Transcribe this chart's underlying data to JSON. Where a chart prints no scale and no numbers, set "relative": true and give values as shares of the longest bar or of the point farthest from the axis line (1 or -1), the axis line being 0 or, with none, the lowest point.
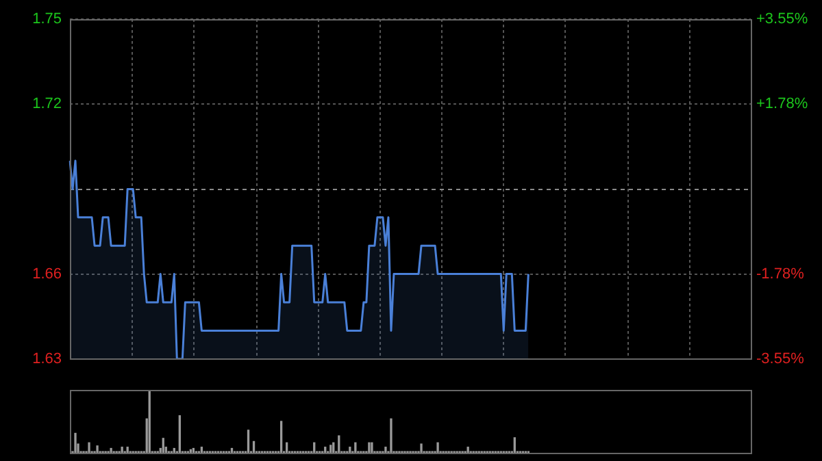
{
  "chart_data": [
    {
      "type": "area",
      "categories": [
        null,
        null,
        null,
        null,
        null,
        null,
        null,
        null,
        null,
        null,
        null,
        null,
        null,
        null,
        null,
        null,
        null,
        null,
        null,
        null,
        null,
        null,
        null,
        null,
        null,
        null,
        null,
        null,
        null,
        null,
        null,
        null,
        null,
        null,
        null,
        null,
        null,
        null,
        null,
        null,
        null,
        null,
        null,
        null,
        null,
        null,
        null,
        null,
        null,
        null,
        null,
        null,
        null,
        null,
        null,
        null,
        null,
        null,
        null,
        null,
        null,
        null,
        null,
        null,
        null,
        null,
        null,
        null,
        null,
        null,
        null,
        null,
        null,
        null,
        null,
        null,
        null,
        null,
        null,
        null,
        null,
        null,
        null,
        null,
        null,
        null,
        null,
        null,
        null,
        null,
        null,
        null,
        null,
        null,
        null,
        null,
        null,
        null,
        null,
        null,
        null,
        null,
        null,
        null,
        null,
        null,
        null,
        null,
        null,
        null,
        null,
        null,
        null,
        null,
        null,
        null,
        null,
        null,
        null,
        null,
        null,
        null,
        null,
        null,
        null,
        null,
        null,
        null,
        null,
        null,
        null,
        null,
        null,
        null,
        null,
        null,
        null,
        null,
        null,
        null,
        null,
        null,
        null,
        null,
        null,
        null,
        null,
        null,
        null,
        null,
        null,
        null,
        null,
        null,
        null,
        null,
        null,
        null,
        null,
        null,
        null,
        null,
        null,
        null,
        null,
        null,
        null,
        null,
        null,
        null,
        null,
        null,
        null,
        null,
        null,
        null,
        null,
        null,
        null,
        null,
        null,
        null,
        null,
        null,
        null,
        null,
        null,
        null,
        null,
        null,
        null,
        null,
        null,
        null,
        null,
        null,
        null,
        null,
        null,
        null,
        null,
        null,
        null,
        null,
        null,
        null,
        null,
        null,
        null,
        null,
        null,
        null,
        null,
        null,
        null,
        null,
        null,
        null,
        null,
        null,
        null,
        null,
        null,
        null,
        null,
        null,
        null,
        null,
        null,
        null,
        null,
        null,
        null,
        null,
        null,
        null,
        null,
        null,
        null,
        null,
        null,
        null,
        null,
        null,
        null,
        null,
        null,
        null,
        null
      ],
      "color": "#4a80d8",
      "values": [
        1.7,
        1.69,
        1.7,
        1.68,
        1.68,
        1.68,
        1.68,
        1.68,
        1.68,
        1.67,
        1.67,
        1.67,
        1.68,
        1.68,
        1.68,
        1.67,
        1.67,
        1.67,
        1.67,
        1.67,
        1.67,
        1.69,
        1.69,
        1.69,
        1.68,
        1.68,
        1.68,
        1.66,
        1.65,
        1.65,
        1.65,
        1.65,
        1.65,
        1.66,
        1.65,
        1.65,
        1.65,
        1.65,
        1.66,
        1.63,
        1.63,
        1.63,
        1.65,
        1.65,
        1.65,
        1.65,
        1.65,
        1.65,
        1.64,
        1.64,
        1.64,
        1.64,
        1.64,
        1.64,
        1.64,
        1.64,
        1.64,
        1.64,
        1.64,
        1.64,
        1.64,
        1.64,
        1.64,
        1.64,
        1.64,
        1.64,
        1.64,
        1.64,
        1.64,
        1.64,
        1.64,
        1.64,
        1.64,
        1.64,
        1.64,
        1.64,
        1.64,
        1.66,
        1.65,
        1.65,
        1.65,
        1.67,
        1.67,
        1.67,
        1.67,
        1.67,
        1.67,
        1.67,
        1.67,
        1.65,
        1.65,
        1.65,
        1.65,
        1.66,
        1.65,
        1.65,
        1.65,
        1.65,
        1.65,
        1.65,
        1.65,
        1.64,
        1.64,
        1.64,
        1.64,
        1.64,
        1.64,
        1.65,
        1.65,
        1.67,
        1.67,
        1.67,
        1.68,
        1.68,
        1.68,
        1.67,
        1.68,
        1.64,
        1.66,
        1.66,
        1.66,
        1.66,
        1.66,
        1.66,
        1.66,
        1.66,
        1.66,
        1.66,
        1.67,
        1.67,
        1.67,
        1.67,
        1.67,
        1.67,
        1.66,
        1.66,
        1.66,
        1.66,
        1.66,
        1.66,
        1.66,
        1.66,
        1.66,
        1.66,
        1.66,
        1.66,
        1.66,
        1.66,
        1.66,
        1.66,
        1.66,
        1.66,
        1.66,
        1.66,
        1.66,
        1.66,
        1.66,
        1.66,
        1.64,
        1.66,
        1.66,
        1.66,
        1.64,
        1.64,
        1.64,
        1.64,
        1.64,
        1.66,
        null,
        null,
        null,
        null,
        null,
        null,
        null,
        null,
        null,
        null,
        null,
        null,
        null,
        null,
        null,
        null,
        null,
        null,
        null,
        null,
        null,
        null,
        null,
        null,
        null,
        null,
        null,
        null,
        null,
        null,
        null,
        null,
        null,
        null,
        null,
        null,
        null,
        null,
        null,
        null,
        null,
        null,
        null,
        null,
        null,
        null,
        null,
        null,
        null,
        null,
        null,
        null,
        null,
        null,
        null,
        null,
        null,
        null,
        null,
        null,
        null,
        null,
        null,
        null,
        null,
        null,
        null,
        null,
        null,
        null,
        null,
        null,
        null,
        null,
        null,
        null,
        null,
        null,
        null,
        null,
        null
      ],
      "ylim": [
        1.63,
        1.75
      ],
      "yticks": [
        1.63,
        1.66,
        1.72,
        1.75
      ],
      "y2lim": [
        -3.55,
        3.55
      ],
      "y2ticks": [
        {
          "value": -3.55,
          "label": "-3.55%"
        },
        {
          "value": -1.78,
          "label": "-1.78%"
        },
        {
          "value": 1.78,
          "label": "+1.78%"
        },
        {
          "value": 3.55,
          "label": "+3.55%"
        }
      ],
      "ref_lines": [
        {
          "axis": "y",
          "value": 1.69,
          "label": null,
          "line_style": "dashed"
        }
      ],
      "grid": true,
      "tick_labels": "y"
    },
    {
      "type": "bar",
      "relative": true,
      "color": "#9a9a9a",
      "categories": [
        null,
        null,
        null,
        null,
        null,
        null,
        null,
        null,
        null,
        null,
        null,
        null,
        null,
        null,
        null,
        null,
        null,
        null,
        null,
        null,
        null,
        null,
        null,
        null,
        null,
        null,
        null,
        null,
        null,
        null,
        null,
        null,
        null,
        null,
        null,
        null,
        null,
        null,
        null,
        null,
        null,
        null,
        null,
        null,
        null,
        null,
        null,
        null,
        null,
        null,
        null,
        null,
        null,
        null,
        null,
        null,
        null,
        null,
        null,
        null,
        null,
        null,
        null,
        null,
        null,
        null,
        null,
        null,
        null,
        null,
        null,
        null,
        null,
        null,
        null,
        null,
        null,
        null,
        null,
        null,
        null,
        null,
        null,
        null,
        null,
        null,
        null,
        null,
        null,
        null,
        null,
        null,
        null,
        null,
        null,
        null,
        null,
        null,
        null,
        null,
        null,
        null,
        null,
        null,
        null,
        null,
        null,
        null,
        null,
        null,
        null,
        null,
        null,
        null,
        null,
        null,
        null,
        null,
        null,
        null,
        null,
        null,
        null,
        null,
        null,
        null,
        null,
        null,
        null,
        null,
        null,
        null,
        null,
        null,
        null,
        null,
        null,
        null,
        null,
        null,
        null,
        null,
        null,
        null,
        null,
        null,
        null,
        null,
        null,
        null,
        null,
        null,
        null,
        null,
        null,
        null,
        null,
        null,
        null,
        null,
        null,
        null,
        null,
        null,
        null,
        null,
        null,
        null,
        null,
        null,
        null,
        null,
        null,
        null,
        null,
        null,
        null,
        null,
        null,
        null,
        null,
        null,
        null,
        null,
        null,
        null,
        null,
        null,
        null,
        null,
        null,
        null,
        null,
        null,
        null,
        null,
        null,
        null,
        null,
        null,
        null,
        null,
        null,
        null,
        null,
        null,
        null,
        null,
        null,
        null,
        null,
        null,
        null,
        null,
        null,
        null,
        null,
        null,
        null,
        null,
        null,
        null,
        null,
        null,
        null,
        null,
        null,
        null,
        null,
        null,
        null,
        null,
        null,
        null,
        null,
        null,
        null,
        null,
        null,
        null,
        null,
        null,
        null,
        null,
        null,
        null,
        null,
        null,
        null
      ],
      "values": [
        0.02,
        0.02,
        0.31,
        0.14,
        0.02,
        0.02,
        0.02,
        0.16,
        0.02,
        0.02,
        0.11,
        0.02,
        0.02,
        0.02,
        0.02,
        0.07,
        0.02,
        0.02,
        0.02,
        0.09,
        0.02,
        0.09,
        0.02,
        0.02,
        0.02,
        0.02,
        0.02,
        0.02,
        0.54,
        1,
        0.02,
        0.02,
        0.02,
        0.07,
        0.23,
        0.09,
        0.02,
        0.02,
        0.07,
        0.02,
        0.59,
        0.02,
        0.02,
        0.02,
        0.05,
        0.07,
        0.02,
        0.02,
        0.09,
        0.02,
        0.02,
        0.02,
        0.02,
        0.02,
        0.02,
        0.02,
        0.02,
        0.02,
        0.02,
        0.07,
        0.02,
        0.02,
        0.02,
        0.02,
        0.02,
        0.36,
        0.02,
        0.18,
        0.02,
        0.02,
        0.02,
        0.02,
        0.02,
        0.02,
        0.02,
        0.02,
        0.02,
        0.5,
        0.02,
        0.16,
        0.02,
        0.02,
        0.02,
        0.02,
        0.02,
        0.02,
        0.02,
        0.02,
        0.02,
        0.16,
        0.02,
        0.02,
        0.02,
        0.09,
        0.02,
        0.12,
        0.16,
        0.02,
        0.27,
        0.02,
        0.02,
        0.02,
        0.09,
        0.02,
        0.16,
        0.02,
        0.02,
        0.02,
        0.02,
        0.16,
        0.16,
        0.02,
        0.02,
        0.02,
        0.02,
        0.09,
        0.02,
        0.54,
        0.02,
        0.02,
        0.02,
        0.02,
        0.02,
        0.02,
        0.02,
        0.02,
        0.02,
        0.02,
        0.14,
        0.02,
        0.02,
        0.02,
        0.02,
        0.02,
        0.16,
        0.02,
        0.02,
        0.02,
        0.02,
        0.02,
        0.02,
        0.02,
        0.02,
        0.02,
        0.02,
        0.09,
        0.02,
        0.02,
        0.02,
        0.02,
        0.02,
        0.02,
        0.02,
        0.02,
        0.02,
        0.02,
        0.02,
        0.02,
        0.02,
        0.02,
        0.02,
        0.02,
        0.24,
        0.02,
        0.02,
        0.02,
        0.02,
        0.02,
        null,
        null,
        null,
        null,
        null,
        null,
        null,
        null,
        null,
        null,
        null,
        null,
        null,
        null,
        null,
        null,
        null,
        null,
        null,
        null,
        null,
        null,
        null,
        null,
        null,
        null,
        null,
        null,
        null,
        null,
        null,
        null,
        null,
        null,
        null,
        null,
        null,
        null,
        null,
        null,
        null,
        null,
        null,
        null,
        null,
        null,
        null,
        null,
        null,
        null,
        null,
        null,
        null,
        null,
        null,
        null,
        null,
        null,
        null,
        null,
        null,
        null,
        null,
        null,
        null,
        null,
        null,
        null,
        null,
        null,
        null,
        null,
        null,
        null,
        null,
        null,
        null,
        null,
        null,
        null,
        null
      ]
    }
  ]
}
